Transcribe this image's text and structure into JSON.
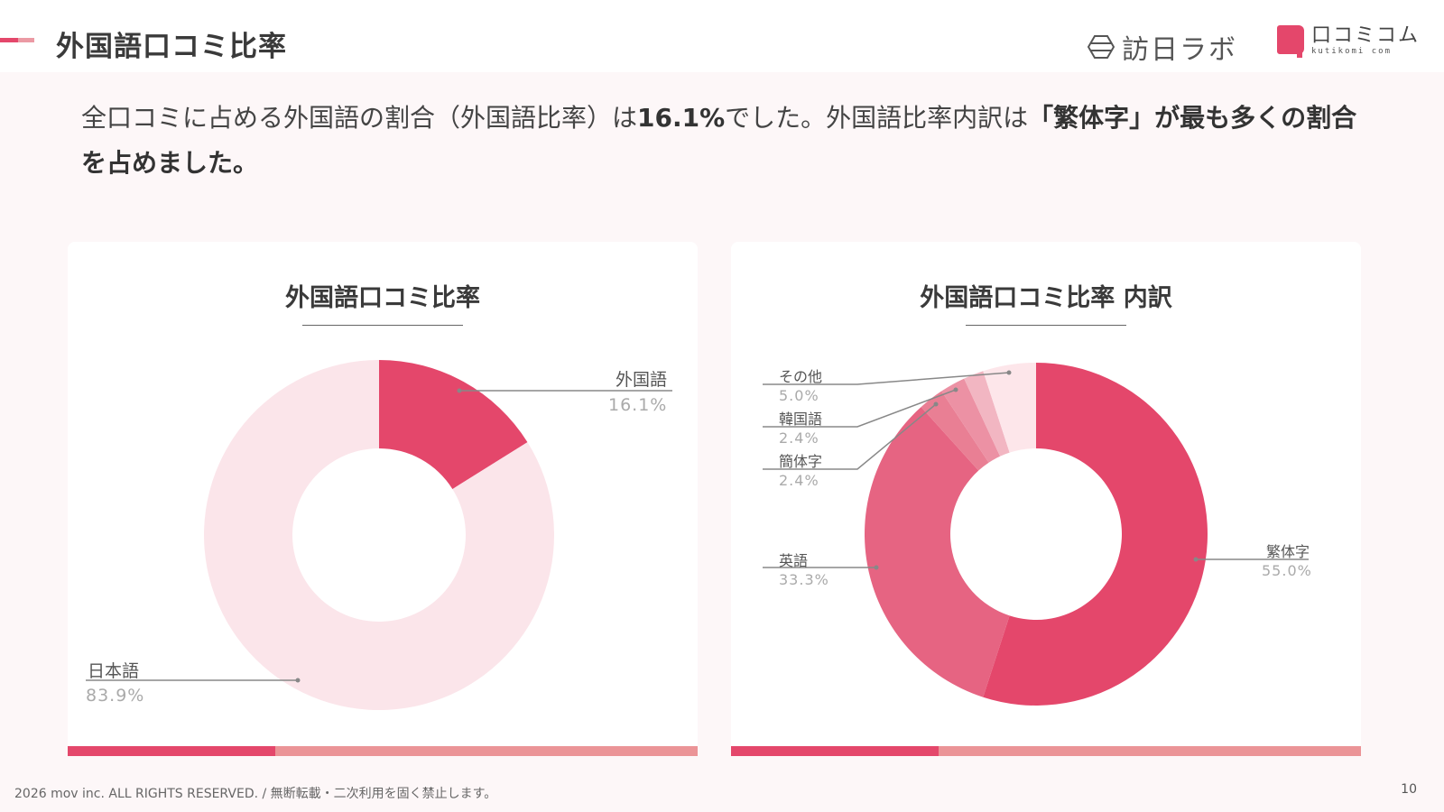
{
  "header": {
    "title": "外国語口コミ比率",
    "logos": [
      {
        "name": "訪日ラボ"
      },
      {
        "name": "口コミコム",
        "sub": "kutikomi com"
      }
    ]
  },
  "lead": {
    "part1": "全口コミに占める外国語の割合（外国語比率）は",
    "highlight1": "16.1%",
    "part2": "でした。外国語比率内訳は",
    "highlight2": "「繁体字」が最も多くの割合を占めました。"
  },
  "colors": {
    "accent": "#e4476b",
    "accent_light": "#eb9497",
    "pale": "#fbe5ea",
    "background": "#fdf7f8"
  },
  "chart_data": [
    {
      "type": "pie",
      "variant": "donut",
      "title": "外国語口コミ比率",
      "categories": [
        "外国語",
        "日本語"
      ],
      "values": [
        16.1,
        83.9
      ],
      "labels": [
        "16.1%",
        "83.9%"
      ],
      "colors": [
        "#e4476b",
        "#fbe5ea"
      ]
    },
    {
      "type": "pie",
      "variant": "donut",
      "title": "外国語口コミ比率 内訳",
      "categories": [
        "繁体字",
        "英語",
        "簡体字",
        "韓国語",
        "(unlabeled)",
        "その他"
      ],
      "values": [
        55.0,
        33.3,
        2.4,
        2.4,
        1.9,
        5.0
      ],
      "labels": [
        "55.0%",
        "33.3%",
        "2.4%",
        "2.4%",
        "",
        "5.0%"
      ],
      "colors": [
        "#e4476b",
        "#e66482",
        "#e97f94",
        "#ec91a4",
        "#f2b6c2",
        "#fde6ea"
      ]
    }
  ],
  "footer": {
    "copyright": "2026 mov inc. ALL RIGHTS RESERVED. / 無断転載・二次利用を固く禁止します。",
    "page": "10"
  }
}
